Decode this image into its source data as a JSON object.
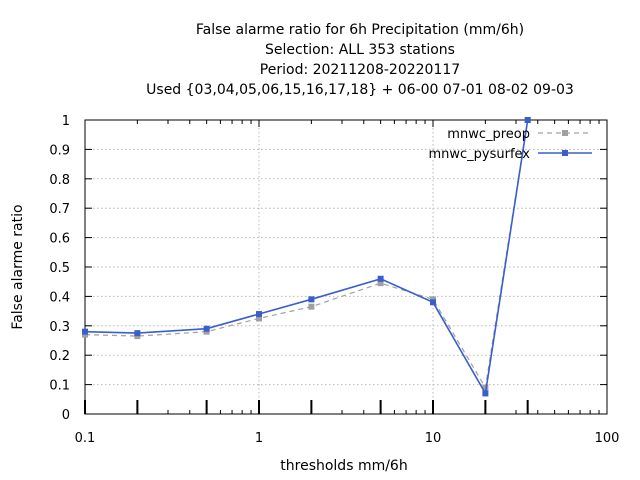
{
  "chart_data": {
    "type": "line",
    "title_lines": [
      "False alarme ratio  for 6h Precipitation (mm/6h)",
      "Selection: ALL    353 stations",
      "Period: 20211208-20220117",
      "Used {03,04,05,06,15,16,17,18} + 06-00 07-01 08-02 09-03"
    ],
    "xlabel": "thresholds mm/6h",
    "ylabel": "False alarme ratio",
    "xscale": "log",
    "xlim": [
      0.1,
      100
    ],
    "ylim": [
      0,
      1
    ],
    "grid": true,
    "legend_position": "top-right",
    "x_tick_labels": [
      "0.1",
      "1",
      "10",
      "100"
    ],
    "x_ticks": [
      0.1,
      1,
      10,
      100
    ],
    "y_tick_labels": [
      "0",
      "0.1",
      "0.2",
      "0.3",
      "0.4",
      "0.5",
      "0.6",
      "0.7",
      "0.8",
      "0.9",
      "1"
    ],
    "y_ticks": [
      0,
      0.1,
      0.2,
      0.3,
      0.4,
      0.5,
      0.6,
      0.7,
      0.8,
      0.9,
      1
    ],
    "threshold_marks": [
      0.1,
      0.2,
      0.5,
      1,
      2,
      5,
      10,
      20,
      35
    ],
    "x": [
      0.1,
      0.2,
      0.5,
      1,
      2,
      5,
      10,
      20,
      35
    ],
    "series": [
      {
        "name": "mnwc_preop",
        "color": "#a0a0a0",
        "style": "dashed",
        "values": [
          0.27,
          0.265,
          0.28,
          0.325,
          0.365,
          0.445,
          0.39,
          0.09,
          1.0
        ]
      },
      {
        "name": "mnwc_pysurfex",
        "color": "#3a5fcd",
        "style": "solid",
        "values": [
          0.28,
          0.275,
          0.29,
          0.34,
          0.39,
          0.46,
          0.38,
          0.07,
          1.0
        ]
      }
    ]
  }
}
